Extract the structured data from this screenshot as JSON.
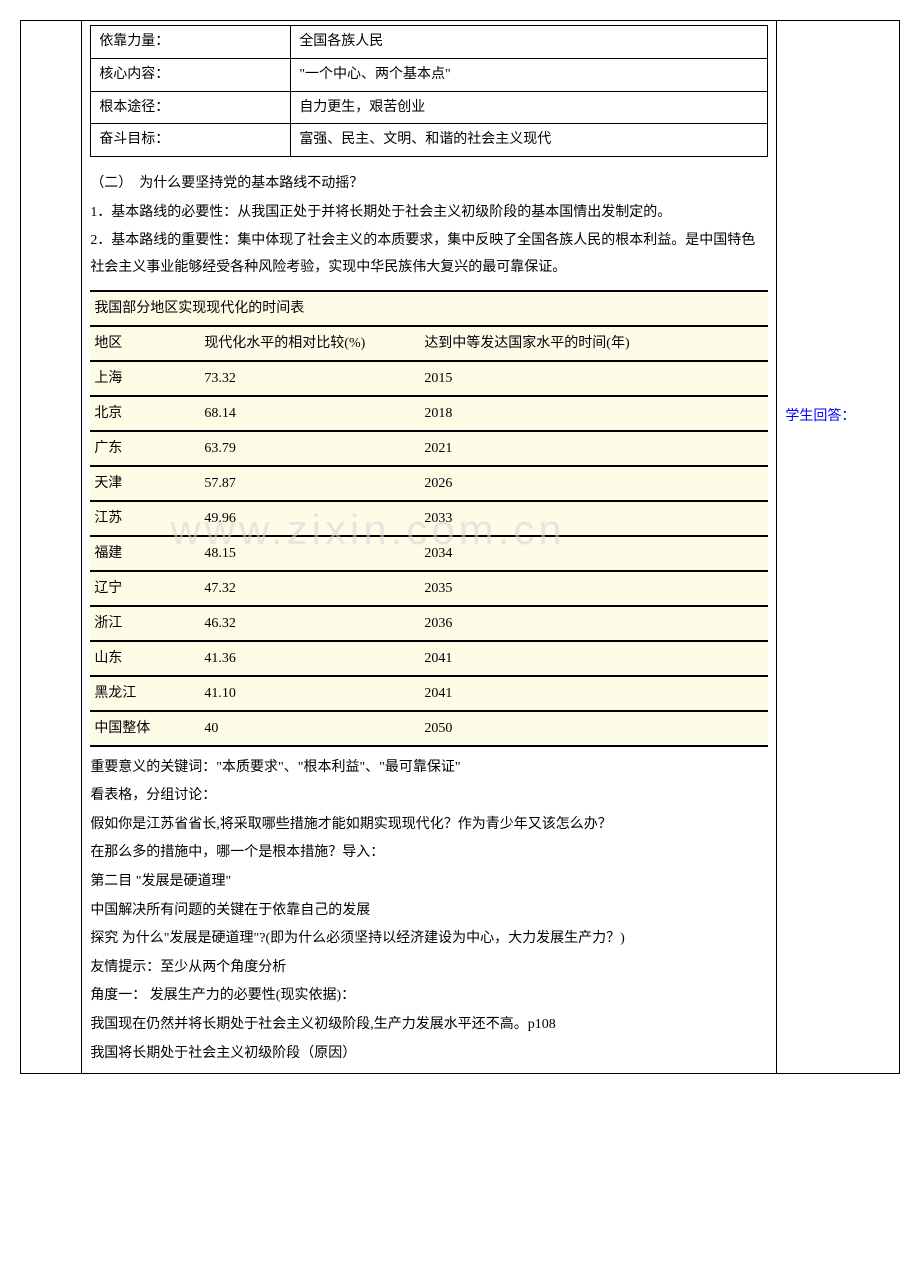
{
  "kv": {
    "rows": [
      {
        "label": "依靠力量：",
        "value": "全国各族人民"
      },
      {
        "label": "核心内容：",
        "value": "\"一个中心、两个基本点\""
      },
      {
        "label": "根本途径：",
        "value": "自力更生，艰苦创业"
      },
      {
        "label": "奋斗目标：",
        "value": "富强、民主、文明、和谐的社会主义现代"
      }
    ]
  },
  "section2": {
    "heading": "（二）　为什么要坚持党的基本路线不动摇？",
    "p1": "1．基本路线的必要性：从我国正处于并将长期处于社会主义初级阶段的基本国情出发制定的。",
    "p2": "2．基本路线的重要性：集中体现了社会主义的本质要求，集中反映了全国各族人民的根本利益。是中国特色社会主义事业能够经受各种风险考验，实现中华民族伟大复兴的最可靠保证。"
  },
  "regionTable": {
    "title": "我国部分地区实现现代化的时间表",
    "header": {
      "col1": "地区",
      "col2": "现代化水平的相对比较(%)",
      "col3": "达到中等发达国家水平的时间(年)"
    },
    "rows": [
      {
        "region": "上海",
        "pct": "73.32",
        "year": "2015"
      },
      {
        "region": "北京",
        "pct": "68.14",
        "year": "2018"
      },
      {
        "region": "广东",
        "pct": "63.79",
        "year": "2021"
      },
      {
        "region": "天津",
        "pct": "57.87",
        "year": "2026"
      },
      {
        "region": "江苏",
        "pct": "49.96",
        "year": "2033"
      },
      {
        "region": "福建",
        "pct": "48.15",
        "year": "2034"
      },
      {
        "region": "辽宁",
        "pct": "47.32",
        "year": "2035"
      },
      {
        "region": "浙江",
        "pct": "46.32",
        "year": "2036"
      },
      {
        "region": "山东",
        "pct": "41.36",
        "year": "2041"
      },
      {
        "region": "黑龙江",
        "pct": "41.10",
        "year": "2041"
      },
      {
        "region": "中国整体",
        "pct": "40",
        "year": "2050"
      }
    ],
    "colors": {
      "bg": "#fdfce7",
      "border": "#000000"
    }
  },
  "afterTable": {
    "p1": "重要意义的关键词：\"本质要求\"、\"根本利益\"、\"最可靠保证\"",
    "p2": "看表格，分组讨论：",
    "p3": "假如你是江苏省省长,将采取哪些措施才能如期实现现代化？作为青少年又该怎么办？",
    "p4": "在那么多的措施中，哪一个是根本措施？导入：",
    "p5": "第二目  \"发展是硬道理\"",
    "p6": "中国解决所有问题的关键在于依靠自己的发展",
    "p7": "探究 为什么\"发展是硬道理\"?(即为什么必须坚持以经济建设为中心，大力发展生产力？)",
    "p8": "友情提示：至少从两个角度分析",
    "p9": "角度一：  发展生产力的必要性(现实依据)：",
    "p10": "我国现在仍然并将长期处于社会主义初级阶段,生产力发展水平还不高。p108",
    "p11": "我国将长期处于社会主义初级阶段（原因）"
  },
  "rightNote": "学生回答：",
  "watermark": "www.zixin.com.cn"
}
